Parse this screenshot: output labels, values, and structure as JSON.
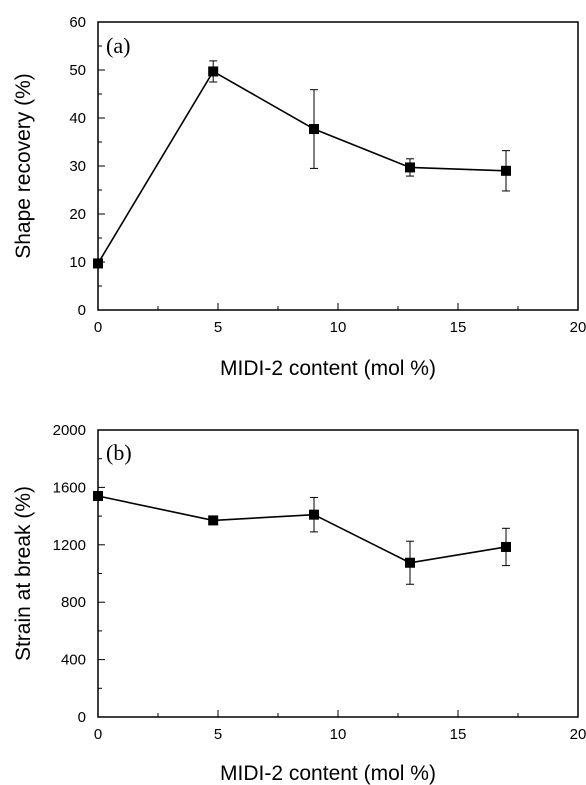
{
  "chart_data": [
    {
      "type": "line",
      "panel_label": "(a)",
      "xlabel": "MIDI-2 content (mol %)",
      "ylabel": "Shape recovery (%)",
      "xlim": [
        0,
        20
      ],
      "ylim": [
        0,
        60
      ],
      "xticks": [
        0,
        5,
        10,
        15,
        20
      ],
      "yticks": [
        0,
        10,
        20,
        30,
        40,
        50,
        60
      ],
      "grid": false,
      "series": [
        {
          "x": [
            0,
            4.8,
            9,
            13,
            17
          ],
          "y": [
            9.7,
            49.7,
            37.7,
            29.7,
            29.0
          ],
          "error": [
            0,
            2.2,
            8.2,
            1.8,
            4.2
          ],
          "marker": "square"
        }
      ]
    },
    {
      "type": "line",
      "panel_label": "(b)",
      "xlabel": "MIDI-2 content (mol %)",
      "ylabel": "Strain at break (%)",
      "xlim": [
        0,
        20
      ],
      "ylim": [
        0,
        2000
      ],
      "xticks": [
        0,
        5,
        10,
        15,
        20
      ],
      "yticks": [
        0,
        400,
        800,
        1200,
        1600,
        2000
      ],
      "grid": false,
      "series": [
        {
          "x": [
            0,
            4.8,
            9,
            13,
            17
          ],
          "y": [
            1540,
            1370,
            1410,
            1075,
            1185
          ],
          "error": [
            0,
            20,
            120,
            150,
            130
          ],
          "marker": "square"
        }
      ]
    }
  ]
}
